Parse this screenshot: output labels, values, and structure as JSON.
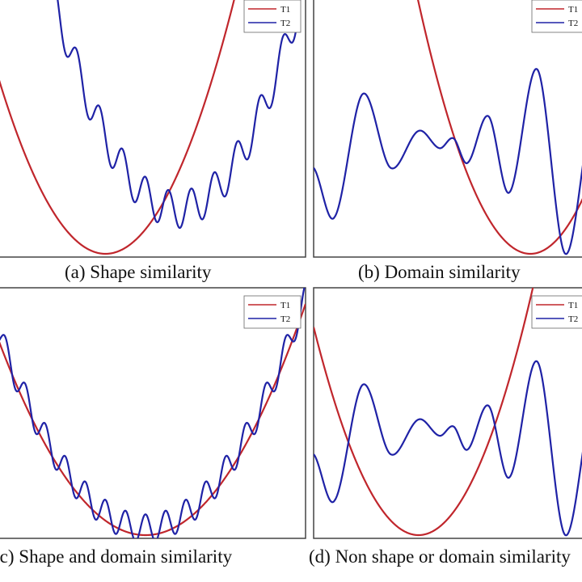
{
  "colors": {
    "T1": "#c0262c",
    "T2": "#1f22a6"
  },
  "chart_data": [
    {
      "type": "line",
      "caption": "(a) Shape similarity",
      "legend": [
        "T1",
        "T2"
      ],
      "legend_position": "top-right",
      "x_range": [
        -1,
        1
      ],
      "y_range": [
        0,
        1
      ],
      "series": [
        {
          "name": "T1",
          "curve": "parabola",
          "vertex_x": -0.25,
          "vertex_y": 0.0,
          "scale": 1.6
        },
        {
          "name": "T2",
          "curve": "parabola_with_oscillation",
          "vertex_x": 0.2,
          "vertex_y": 0.18,
          "scale": 1.45,
          "amplitude": 0.075,
          "cycles": 14
        }
      ]
    },
    {
      "type": "line",
      "caption": "(b) Domain similarity",
      "legend": [
        "T1",
        "T2"
      ],
      "legend_position": "top-right",
      "x_range": [
        -1,
        1
      ],
      "y_range": [
        0,
        1
      ],
      "series": [
        {
          "name": "T1",
          "curve": "parabola",
          "vertex_x": 0.55,
          "vertex_y": 0.0,
          "scale": 1.6
        },
        {
          "name": "T2",
          "curve": "multimodal",
          "x": [
            -1.0,
            -0.85,
            -0.65,
            -0.45,
            -0.25,
            -0.1,
            0.0,
            0.1,
            0.25,
            0.4,
            0.6,
            0.8,
            1.0
          ],
          "y": [
            0.35,
            0.15,
            0.65,
            0.35,
            0.5,
            0.43,
            0.47,
            0.37,
            0.56,
            0.25,
            0.75,
            0.0,
            0.6
          ]
        }
      ]
    },
    {
      "type": "line",
      "caption": "(c) Shape and domain similarity",
      "legend": [
        "T1",
        "T2"
      ],
      "legend_position": "top-right",
      "x_range": [
        -1,
        1
      ],
      "y_range": [
        0,
        1
      ],
      "series": [
        {
          "name": "T1",
          "curve": "parabola",
          "vertex_x": 0.0,
          "vertex_y": 0.0,
          "scale": 1.0
        },
        {
          "name": "T2",
          "curve": "parabola_with_oscillation",
          "vertex_x": 0.0,
          "vertex_y": 0.03,
          "scale": 1.0,
          "amplitude": 0.06,
          "cycles": 16
        }
      ]
    },
    {
      "type": "line",
      "caption": "(d) Non shape or domain similarity",
      "legend": [
        "T1",
        "T2"
      ],
      "legend_position": "top-right",
      "x_range": [
        -1,
        1
      ],
      "y_range": [
        0,
        1
      ],
      "series": [
        {
          "name": "T1",
          "curve": "parabola",
          "vertex_x": -0.25,
          "vertex_y": 0.0,
          "scale": 1.6
        },
        {
          "name": "T2",
          "curve": "multimodal",
          "x": [
            -1.0,
            -0.85,
            -0.65,
            -0.45,
            -0.25,
            -0.1,
            0.0,
            0.1,
            0.25,
            0.4,
            0.6,
            0.8,
            1.0
          ],
          "y": [
            0.35,
            0.15,
            0.65,
            0.35,
            0.5,
            0.43,
            0.47,
            0.37,
            0.56,
            0.25,
            0.75,
            0.0,
            0.6
          ]
        }
      ]
    }
  ]
}
